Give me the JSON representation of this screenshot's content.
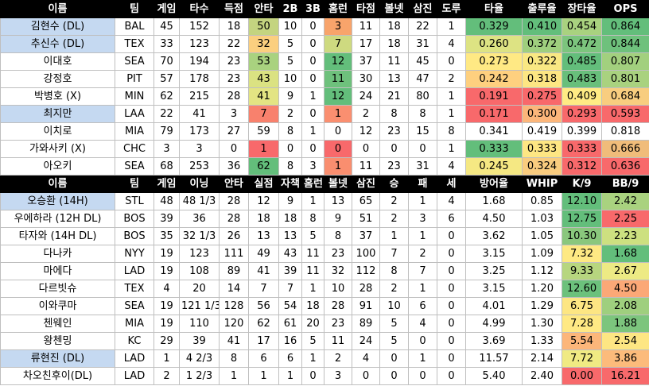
{
  "batting": {
    "headers": [
      "이름",
      "팀",
      "게임",
      "타수",
      "득점",
      "안타",
      "2B",
      "3B",
      "홈런",
      "타점",
      "볼넷",
      "삼진",
      "도루",
      "타율",
      "출루율",
      "장타율",
      "OPS"
    ],
    "rows": [
      {
        "highlight": true,
        "cells": [
          "김현수 (DL)",
          "BAL",
          "45",
          "152",
          "18",
          "50",
          "10",
          "0",
          "3",
          "11",
          "18",
          "22",
          "1",
          "0.329",
          "0.410",
          "0.454",
          "0.864"
        ]
      },
      {
        "highlight": true,
        "cells": [
          "추신수 (DL)",
          "TEX",
          "33",
          "123",
          "22",
          "32",
          "5",
          "0",
          "7",
          "17",
          "18",
          "31",
          "4",
          "0.260",
          "0.372",
          "0.472",
          "0.844"
        ]
      },
      {
        "highlight": false,
        "cells": [
          "이대호",
          "SEA",
          "70",
          "194",
          "23",
          "53",
          "5",
          "0",
          "12",
          "37",
          "11",
          "45",
          "0",
          "0.273",
          "0.322",
          "0.485",
          "0.807"
        ]
      },
      {
        "highlight": false,
        "cells": [
          "강정호",
          "PIT",
          "57",
          "178",
          "23",
          "43",
          "10",
          "0",
          "11",
          "30",
          "13",
          "47",
          "2",
          "0.242",
          "0.318",
          "0.483",
          "0.801"
        ]
      },
      {
        "highlight": false,
        "cells": [
          "박병호 (X)",
          "MIN",
          "62",
          "215",
          "28",
          "41",
          "9",
          "1",
          "12",
          "24",
          "21",
          "80",
          "1",
          "0.191",
          "0.275",
          "0.409",
          "0.684"
        ]
      },
      {
        "highlight": true,
        "cells": [
          "최지만",
          "LAA",
          "22",
          "41",
          "3",
          "7",
          "2",
          "0",
          "1",
          "2",
          "8",
          "8",
          "1",
          "0.171",
          "0.300",
          "0.293",
          "0.593"
        ]
      },
      {
        "highlight": false,
        "cells": [
          "이치로",
          "MIA",
          "79",
          "173",
          "27",
          "59",
          "8",
          "1",
          "0",
          "12",
          "23",
          "15",
          "8",
          "0.341",
          "0.419",
          "0.399",
          "0.818"
        ]
      },
      {
        "highlight": false,
        "cells": [
          "가와사키 (X)",
          "CHC",
          "3",
          "3",
          "0",
          "1",
          "0",
          "0",
          "0",
          "0",
          "0",
          "0",
          "1",
          "0.333",
          "0.333",
          "0.333",
          "0.666"
        ]
      },
      {
        "highlight": false,
        "cells": [
          "아오키",
          "SEA",
          "68",
          "253",
          "36",
          "62",
          "8",
          "3",
          "1",
          "11",
          "23",
          "31",
          "4",
          "0.245",
          "0.324",
          "0.312",
          "0.636"
        ]
      }
    ],
    "colors": [
      {
        "5": "#c4d480",
        "8": "#f8a46b",
        "13": "#63be7b",
        "14": "#63be7b",
        "15": "#a9d27f",
        "16": "#63be7b"
      },
      {
        "5": "#fbcf7f",
        "8": "#ceda80",
        "13": "#dde383",
        "14": "#9fcf7e",
        "15": "#7cc57d",
        "16": "#6ec17c"
      },
      {
        "5": "#a9d27f",
        "8": "#63be7b",
        "13": "#ffe984",
        "14": "#f9e883",
        "15": "#63be7b",
        "16": "#a2d07e"
      },
      {
        "5": "#dbe282",
        "8": "#6ec17c",
        "13": "#fed07f",
        "14": "#fde683",
        "15": "#68bf7b",
        "16": "#a9d27f"
      },
      {
        "5": "#e3e483",
        "8": "#63be7b",
        "13": "#f8696b",
        "14": "#f8696b",
        "15": "#ffeb84",
        "16": "#f8cd7f"
      },
      {
        "5": "#f8816d",
        "8": "#fa8f70",
        "13": "#f8696b",
        "14": "#fcb67a",
        "15": "#f8696b",
        "16": "#f8696b"
      },
      {},
      {
        "5": "#f8696b",
        "8": "#f8696b",
        "13": "#63be7b",
        "14": "#fee683",
        "15": "#f8696b",
        "16": "#f0bc7a"
      },
      {
        "5": "#63be7b",
        "8": "#f98e6f",
        "13": "#f5e883",
        "14": "#f9cc7f",
        "15": "#f8696b",
        "16": "#f8696b"
      }
    ]
  },
  "pitching": {
    "headers": [
      "이름",
      "팀",
      "게임",
      "이닝",
      "안타",
      "실점",
      "자책",
      "홈런",
      "볼넷",
      "삼진",
      "승",
      "패",
      "세",
      "방어율",
      "WHIP",
      "K/9",
      "BB/9"
    ],
    "rows": [
      {
        "highlight": true,
        "cells": [
          "오승환 (14H)",
          "STL",
          "48",
          "48 1/3",
          "28",
          "12",
          "9",
          "1",
          "13",
          "65",
          "2",
          "1",
          "4",
          "1.68",
          "0.85",
          "12.10",
          "2.42"
        ]
      },
      {
        "highlight": false,
        "cells": [
          "우에하라 (12H DL)",
          "BOS",
          "39",
          "36",
          "28",
          "18",
          "18",
          "8",
          "9",
          "51",
          "2",
          "3",
          "6",
          "4.50",
          "1.03",
          "12.75",
          "2.25"
        ]
      },
      {
        "highlight": false,
        "cells": [
          "타자와 (14H DL)",
          "BOS",
          "35",
          "32 1/3",
          "26",
          "13",
          "13",
          "5",
          "8",
          "37",
          "1",
          "1",
          "0",
          "3.62",
          "1.05",
          "10.30",
          "2.23"
        ]
      },
      {
        "highlight": false,
        "cells": [
          "다나카",
          "NYY",
          "19",
          "123",
          "111",
          "49",
          "43",
          "11",
          "23",
          "100",
          "7",
          "2",
          "0",
          "3.15",
          "1.09",
          "7.32",
          "1.68"
        ]
      },
      {
        "highlight": false,
        "cells": [
          "마에다",
          "LAD",
          "19",
          "108",
          "89",
          "41",
          "39",
          "11",
          "32",
          "112",
          "8",
          "7",
          "0",
          "3.25",
          "1.12",
          "9.33",
          "2.67"
        ]
      },
      {
        "highlight": false,
        "cells": [
          "다르빗슈",
          "TEX",
          "4",
          "20",
          "14",
          "7",
          "7",
          "1",
          "10",
          "28",
          "2",
          "1",
          "0",
          "3.15",
          "1.20",
          "12.60",
          "4.50"
        ]
      },
      {
        "highlight": false,
        "cells": [
          "이와쿠마",
          "SEA",
          "19",
          "121 1/3",
          "128",
          "56",
          "54",
          "18",
          "28",
          "91",
          "10",
          "6",
          "0",
          "4.01",
          "1.29",
          "6.75",
          "2.08"
        ]
      },
      {
        "highlight": false,
        "cells": [
          "첸웨인",
          "MIA",
          "19",
          "110",
          "120",
          "62",
          "61",
          "20",
          "23",
          "89",
          "5",
          "4",
          "0",
          "4.99",
          "1.30",
          "7.28",
          "1.88"
        ]
      },
      {
        "highlight": false,
        "cells": [
          "왕첸밍",
          "KC",
          "29",
          "39",
          "41",
          "17",
          "16",
          "5",
          "11",
          "24",
          "5",
          "0",
          "0",
          "3.69",
          "1.33",
          "5.54",
          "2.54"
        ]
      },
      {
        "highlight": true,
        "cells": [
          "류현진 (DL)",
          "LAD",
          "1",
          "4 2/3",
          "8",
          "6",
          "6",
          "1",
          "2",
          "4",
          "0",
          "1",
          "0",
          "11.57",
          "2.14",
          "7.72",
          "3.86"
        ]
      },
      {
        "highlight": false,
        "cells": [
          "차오친후이(DL)",
          "LAD",
          "2",
          "1 2/3",
          "1",
          "1",
          "1",
          "0",
          "3",
          "0",
          "0",
          "0",
          "0",
          "5.40",
          "2.40",
          "0.00",
          "16.21"
        ]
      }
    ],
    "colors": [
      {
        "15": "#63be7b",
        "16": "#a9d27f"
      },
      {
        "15": "#63be7b",
        "16": "#f8696b"
      },
      {
        "15": "#8ac77d",
        "16": "#cde080"
      },
      {
        "15": "#fee983",
        "16": "#63be7b"
      },
      {
        "15": "#b7d67f",
        "16": "#edea84"
      },
      {
        "15": "#6cc17c",
        "16": "#fba877"
      },
      {
        "15": "#fde683",
        "16": "#9fcf7e"
      },
      {
        "15": "#ffe984",
        "16": "#7cc57d"
      },
      {
        "15": "#fcb67a",
        "16": "#fde683"
      },
      {
        "15": "#f0ea83",
        "16": "#fcbb7b"
      },
      {
        "15": "#f8696b",
        "16": "#f8696b"
      }
    ]
  }
}
